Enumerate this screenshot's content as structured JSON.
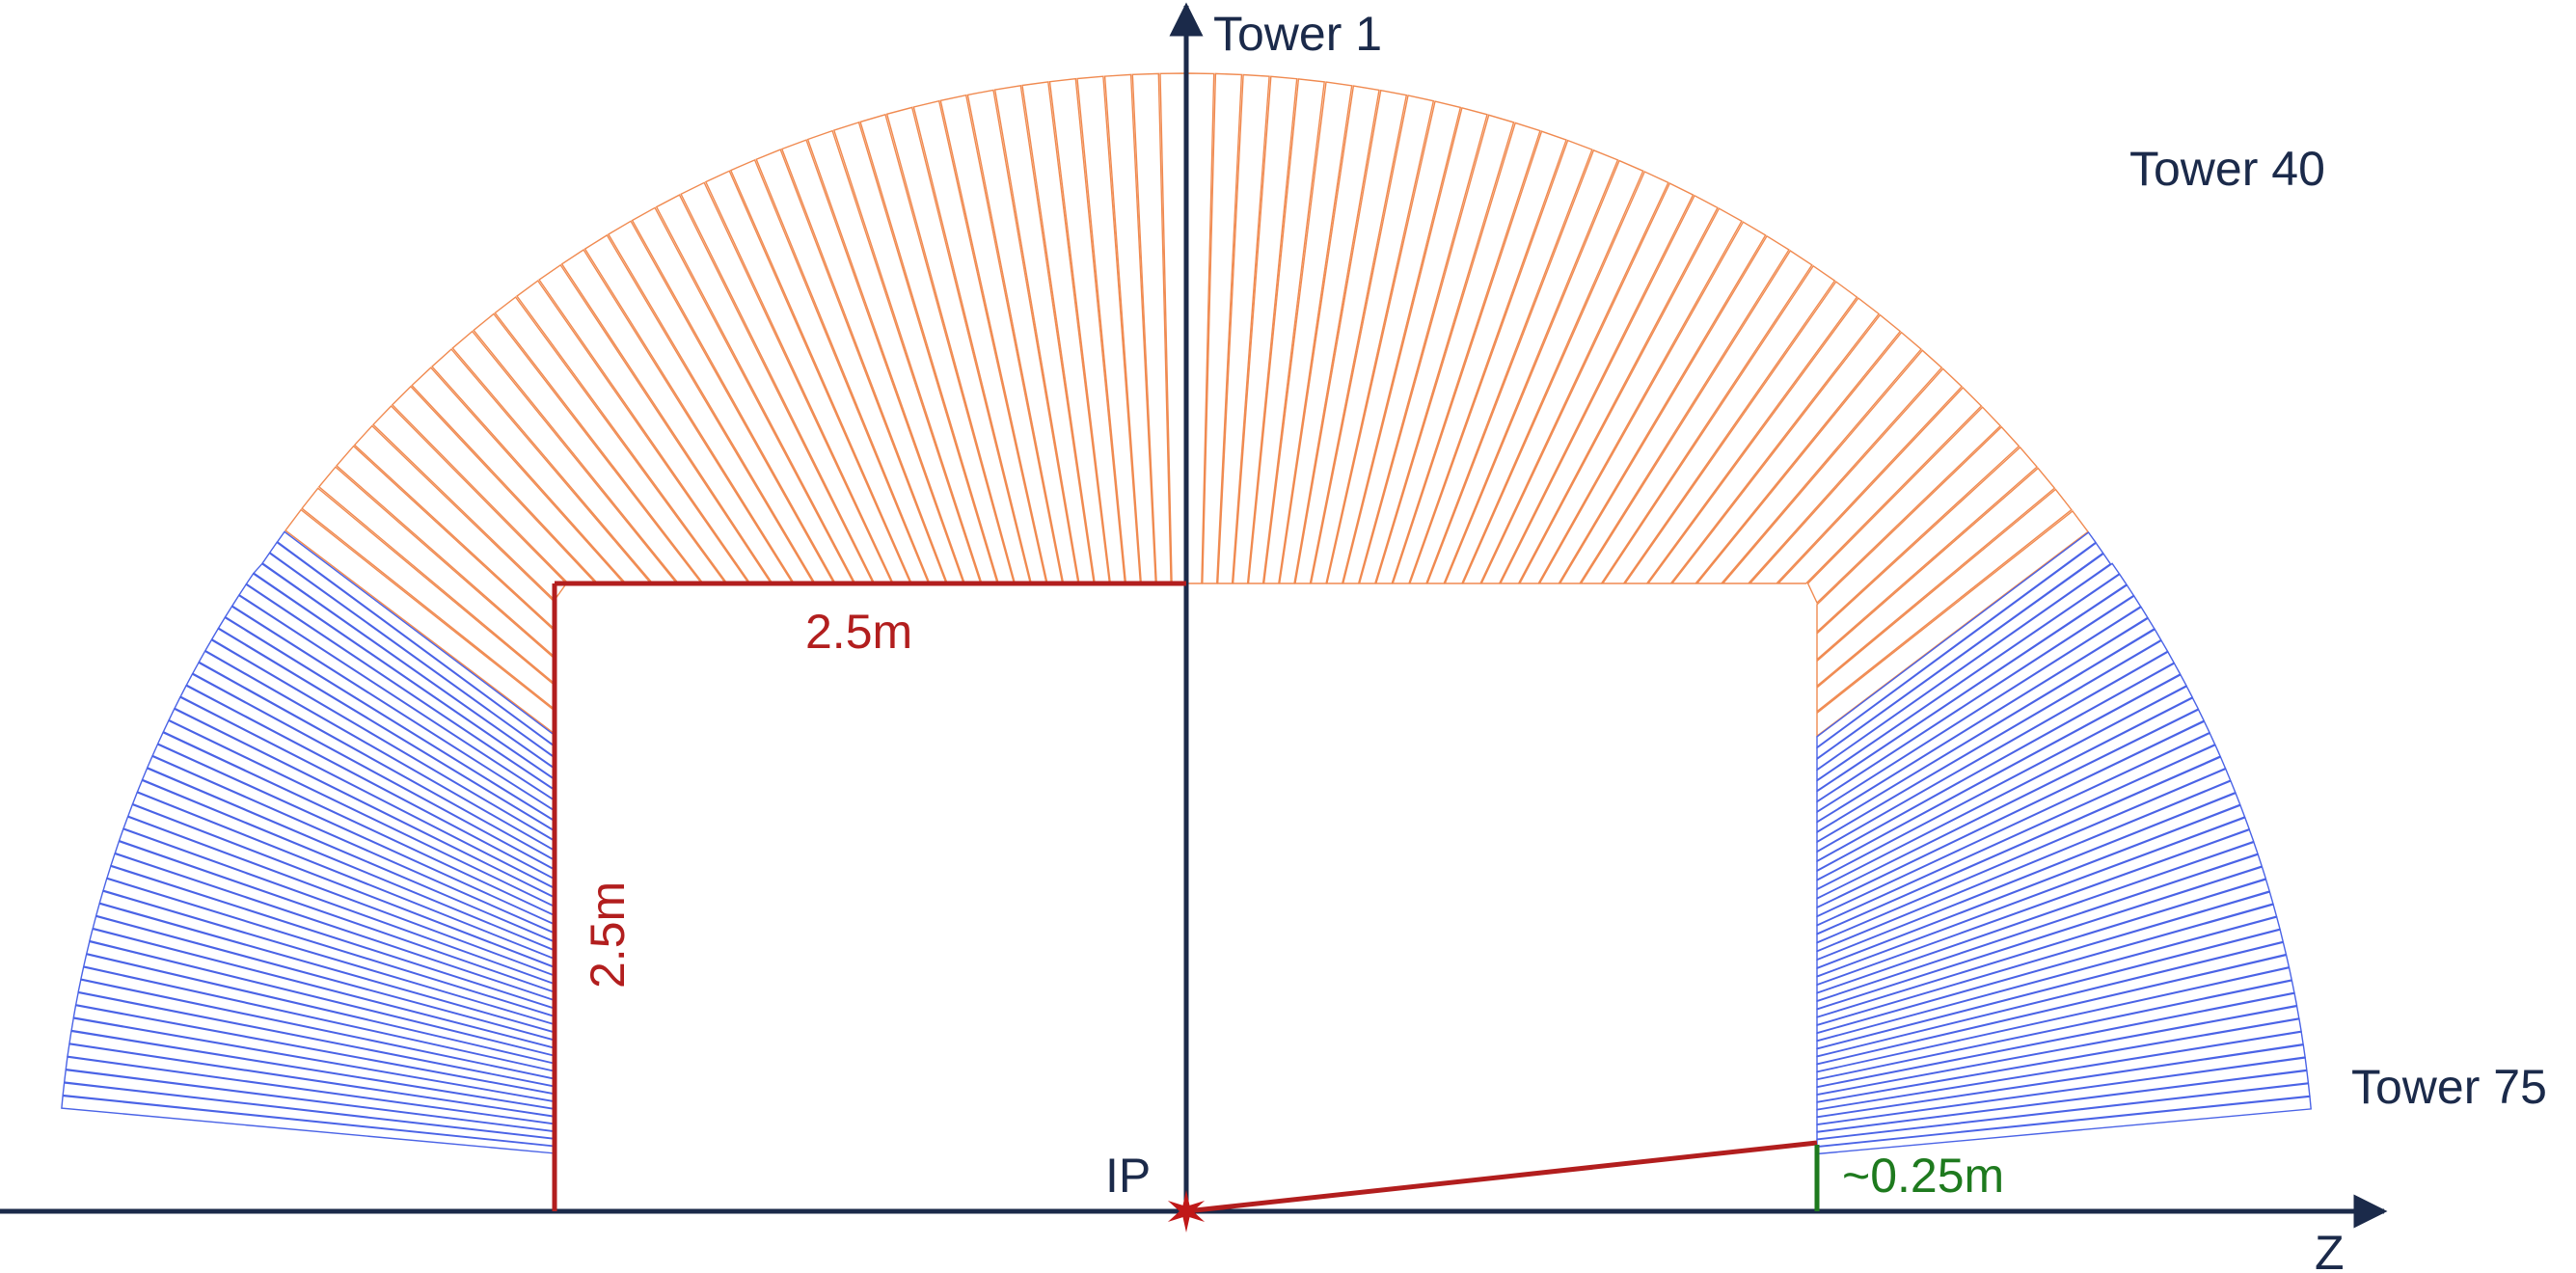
{
  "labels": {
    "tower_first": "Tower 1",
    "tower_mid": "Tower 40",
    "tower_last": "Tower 75",
    "ip": "IP",
    "axis_z": "Z",
    "dim_horizontal": "2.5m",
    "dim_vertical": "2.5m",
    "dim_offset": "~0.25m"
  },
  "colors": {
    "axis": "#1b2a4a",
    "barrel_towers": "#f08a50",
    "endcap_towers": "#4a63e6",
    "dimension": "#b21e1e",
    "offset": "#1e7a1e",
    "ip_marker": "#c01818"
  }
}
